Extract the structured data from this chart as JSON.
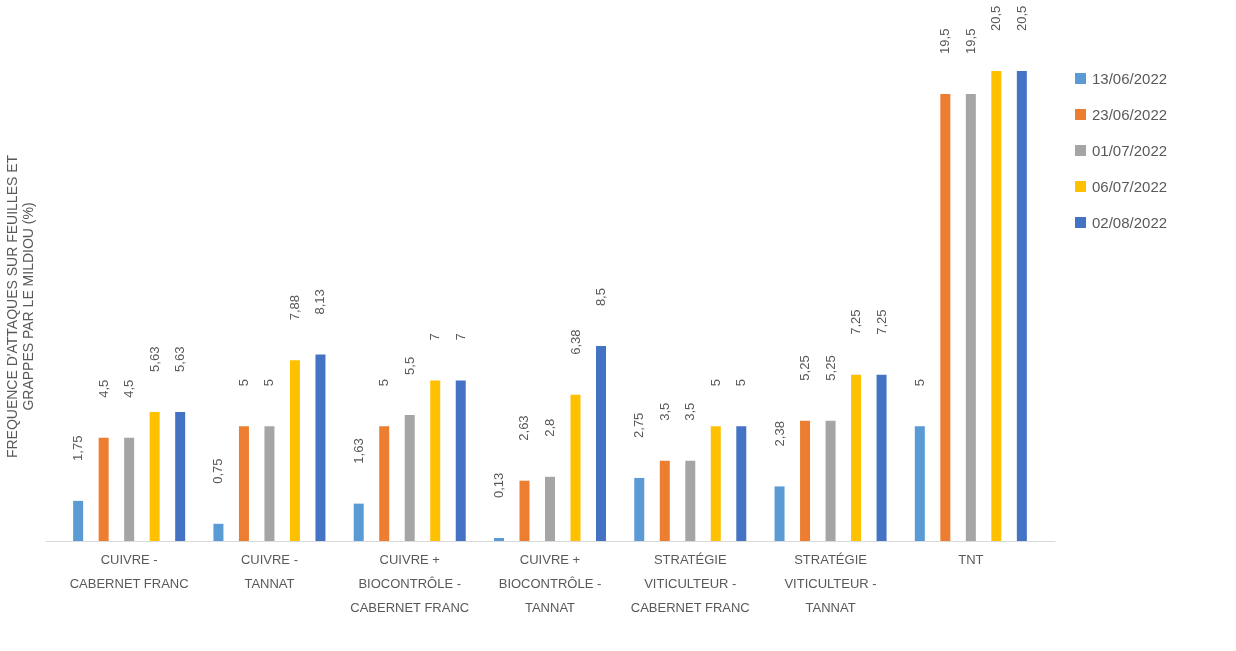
{
  "chart_data": {
    "type": "bar",
    "ylabel": "FREQUENCE D'ATTAQUES SUR FEUILLES ET GRAPPES PAR LE MILDIOU (%)",
    "categories": [
      "CUIVRE - CABERNET FRANC",
      "CUIVRE - TANNAT",
      "CUIVRE + BIOCONTRÔLE - CABERNET FRANC",
      "CUIVRE + BIOCONTRÔLE - TANNAT",
      "STRATÉGIE VITICULTEUR - CABERNET FRANC",
      "STRATÉGIE VITICULTEUR - TANNAT",
      "TNT"
    ],
    "series": [
      {
        "name": "13/06/2022",
        "color": "#5b9bd5",
        "values": [
          1.75,
          0.75,
          1.63,
          0.13,
          2.75,
          2.38,
          5
        ],
        "value_labels": [
          "1,75",
          "0,75",
          "1,63",
          "0,13",
          "2,75",
          "2,38",
          "5"
        ]
      },
      {
        "name": "23/06/2022",
        "color": "#ed7d31",
        "values": [
          4.5,
          5,
          5,
          2.63,
          3.5,
          5.25,
          19.5
        ],
        "value_labels": [
          "4,5",
          "5",
          "5",
          "2,63",
          "3,5",
          "5,25",
          "19,5"
        ]
      },
      {
        "name": "01/07/2022",
        "color": "#a5a5a5",
        "values": [
          4.5,
          5,
          5.5,
          2.8,
          3.5,
          5.25,
          19.5
        ],
        "value_labels": [
          "4,5",
          "5",
          "5,5",
          "2,8",
          "3,5",
          "5,25",
          "19,5"
        ]
      },
      {
        "name": "06/07/2022",
        "color": "#ffc000",
        "values": [
          5.63,
          7.88,
          7,
          6.38,
          5,
          7.25,
          20.5
        ],
        "value_labels": [
          "5,63",
          "7,88",
          "7",
          "6,38",
          "5",
          "7,25",
          "20,5"
        ]
      },
      {
        "name": "02/08/2022",
        "color": "#4472c4",
        "values": [
          5.63,
          8.13,
          7,
          8.5,
          5,
          7.25,
          20.5
        ],
        "value_labels": [
          "5,63",
          "8,13",
          "7",
          "8,5",
          "5",
          "7,25",
          "20,5"
        ]
      }
    ],
    "legend": "right",
    "grid": false
  }
}
